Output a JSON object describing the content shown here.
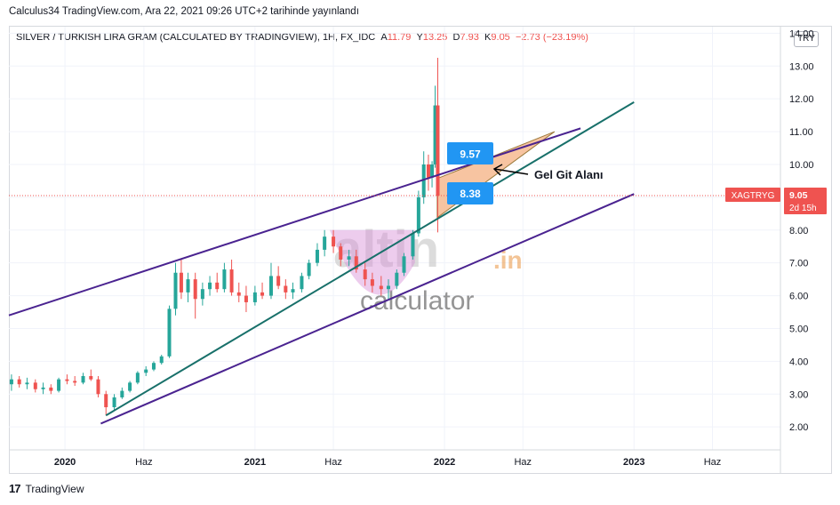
{
  "caption": "Calculus34 TradingView.com, Ara 22, 2021 09:26 UTC+2 tarihinde yayınlandı",
  "legend": {
    "symbol": "SILVER / TURKISH LIRA GRAM (CALCULATED BY TRADINGVIEW), 1H, FX_IDC",
    "open_label": "A",
    "open": "11.79",
    "high_label": "Y",
    "high": "13.25",
    "low_label": "D",
    "low": "7.93",
    "close_label": "K",
    "close": "9.05",
    "change": "−2.73 (−23.19%)"
  },
  "currency_button": "TRY",
  "footer": {
    "brand": "TradingView"
  },
  "watermark": {
    "main": "altin",
    "tld": ".in",
    "sub": "calculator"
  },
  "annotation": {
    "label": "Gel Git Alanı",
    "upper_value": "9.57",
    "lower_value": "8.38"
  },
  "price_tag": {
    "ticker": "XAGTRYG",
    "price": "9.05",
    "countdown": "2d 15h"
  },
  "colors": {
    "up": "#26a69a",
    "down": "#ef5350",
    "channel": "#4a2390",
    "trend": "#18706a",
    "zone": "#f5b58a",
    "badge": "#2196f3",
    "cup": "#d88fd6"
  },
  "chart_data": {
    "type": "candlestick",
    "y_ticks": [
      2,
      3,
      4,
      5,
      6,
      7,
      8,
      9,
      10,
      11,
      12,
      13,
      14
    ],
    "y_tick_labels": [
      "2.00",
      "3.00",
      "4.00",
      "5.00",
      "6.00",
      "7.00",
      "8.00",
      "9.00",
      "10.00",
      "11.00",
      "12.00",
      "13.00",
      "14.00"
    ],
    "ylim": [
      1.3,
      14.2
    ],
    "x_ticks": [
      "2020",
      "Haz",
      "2021",
      "Haz",
      "2022",
      "Haz",
      "2023",
      "Haz"
    ],
    "x_tick_dates": [
      "2020-01",
      "2020-06",
      "2021-01",
      "2021-06",
      "2022-01",
      "2022-06",
      "2023-01",
      "2023-06"
    ],
    "xlim": [
      "2019-09-15",
      "2023-10-10"
    ],
    "series": [
      {
        "values": [
          {
            "x": "2019-09-20",
            "o": 3.3,
            "h": 3.6,
            "l": 3.1,
            "c": 3.45
          },
          {
            "x": "2019-10-05",
            "o": 3.45,
            "h": 3.55,
            "l": 3.2,
            "c": 3.3
          },
          {
            "x": "2019-10-20",
            "o": 3.3,
            "h": 3.5,
            "l": 3.15,
            "c": 3.35
          },
          {
            "x": "2019-11-05",
            "o": 3.35,
            "h": 3.45,
            "l": 3.05,
            "c": 3.15
          },
          {
            "x": "2019-11-20",
            "o": 3.15,
            "h": 3.35,
            "l": 3.0,
            "c": 3.2
          },
          {
            "x": "2019-12-05",
            "o": 3.2,
            "h": 3.3,
            "l": 3.0,
            "c": 3.1
          },
          {
            "x": "2019-12-20",
            "o": 3.1,
            "h": 3.5,
            "l": 3.05,
            "c": 3.45
          },
          {
            "x": "2020-01-05",
            "o": 3.45,
            "h": 3.6,
            "l": 3.3,
            "c": 3.4
          },
          {
            "x": "2020-01-20",
            "o": 3.4,
            "h": 3.55,
            "l": 3.25,
            "c": 3.35
          },
          {
            "x": "2020-02-05",
            "o": 3.35,
            "h": 3.65,
            "l": 3.3,
            "c": 3.55
          },
          {
            "x": "2020-02-20",
            "o": 3.55,
            "h": 3.75,
            "l": 3.4,
            "c": 3.45
          },
          {
            "x": "2020-03-05",
            "o": 3.45,
            "h": 3.55,
            "l": 2.9,
            "c": 3.0
          },
          {
            "x": "2020-03-20",
            "o": 3.0,
            "h": 3.1,
            "l": 2.35,
            "c": 2.6
          },
          {
            "x": "2020-04-05",
            "o": 2.6,
            "h": 3.0,
            "l": 2.5,
            "c": 2.9
          },
          {
            "x": "2020-04-20",
            "o": 2.9,
            "h": 3.2,
            "l": 2.85,
            "c": 3.1
          },
          {
            "x": "2020-05-05",
            "o": 3.1,
            "h": 3.4,
            "l": 3.05,
            "c": 3.35
          },
          {
            "x": "2020-05-20",
            "o": 3.35,
            "h": 3.7,
            "l": 3.3,
            "c": 3.65
          },
          {
            "x": "2020-06-05",
            "o": 3.65,
            "h": 3.85,
            "l": 3.55,
            "c": 3.75
          },
          {
            "x": "2020-06-20",
            "o": 3.75,
            "h": 4.0,
            "l": 3.7,
            "c": 3.95
          },
          {
            "x": "2020-07-05",
            "o": 3.95,
            "h": 4.2,
            "l": 3.9,
            "c": 4.15
          },
          {
            "x": "2020-07-20",
            "o": 4.15,
            "h": 5.7,
            "l": 4.1,
            "c": 5.6
          },
          {
            "x": "2020-08-01",
            "o": 5.6,
            "h": 7.0,
            "l": 5.4,
            "c": 6.7
          },
          {
            "x": "2020-08-12",
            "o": 6.7,
            "h": 7.1,
            "l": 5.9,
            "c": 6.1
          },
          {
            "x": "2020-08-25",
            "o": 6.1,
            "h": 6.7,
            "l": 5.8,
            "c": 6.5
          },
          {
            "x": "2020-09-08",
            "o": 6.5,
            "h": 6.7,
            "l": 5.3,
            "c": 5.9
          },
          {
            "x": "2020-09-22",
            "o": 5.9,
            "h": 6.4,
            "l": 5.7,
            "c": 6.2
          },
          {
            "x": "2020-10-06",
            "o": 6.2,
            "h": 6.6,
            "l": 6.0,
            "c": 6.4
          },
          {
            "x": "2020-10-20",
            "o": 6.4,
            "h": 6.7,
            "l": 6.1,
            "c": 6.2
          },
          {
            "x": "2020-11-03",
            "o": 6.2,
            "h": 7.0,
            "l": 6.1,
            "c": 6.8
          },
          {
            "x": "2020-11-17",
            "o": 6.8,
            "h": 7.1,
            "l": 6.0,
            "c": 6.1
          },
          {
            "x": "2020-12-01",
            "o": 6.1,
            "h": 6.4,
            "l": 5.8,
            "c": 6.0
          },
          {
            "x": "2020-12-15",
            "o": 6.0,
            "h": 6.3,
            "l": 5.5,
            "c": 5.8
          },
          {
            "x": "2021-01-01",
            "o": 5.8,
            "h": 6.3,
            "l": 5.7,
            "c": 6.1
          },
          {
            "x": "2021-01-15",
            "o": 6.1,
            "h": 6.4,
            "l": 5.9,
            "c": 6.0
          },
          {
            "x": "2021-02-01",
            "o": 6.0,
            "h": 7.0,
            "l": 5.9,
            "c": 6.6
          },
          {
            "x": "2021-02-15",
            "o": 6.6,
            "h": 6.9,
            "l": 6.2,
            "c": 6.3
          },
          {
            "x": "2021-03-01",
            "o": 6.3,
            "h": 6.5,
            "l": 5.9,
            "c": 6.1
          },
          {
            "x": "2021-03-15",
            "o": 6.1,
            "h": 6.4,
            "l": 5.9,
            "c": 6.2
          },
          {
            "x": "2021-04-01",
            "o": 6.2,
            "h": 6.7,
            "l": 6.1,
            "c": 6.6
          },
          {
            "x": "2021-04-15",
            "o": 6.6,
            "h": 7.1,
            "l": 6.5,
            "c": 7.0
          },
          {
            "x": "2021-05-01",
            "o": 7.0,
            "h": 7.6,
            "l": 6.9,
            "c": 7.4
          },
          {
            "x": "2021-05-15",
            "o": 7.4,
            "h": 8.0,
            "l": 7.2,
            "c": 7.8
          },
          {
            "x": "2021-06-01",
            "o": 7.8,
            "h": 8.0,
            "l": 7.3,
            "c": 7.5
          },
          {
            "x": "2021-06-15",
            "o": 7.5,
            "h": 7.6,
            "l": 6.9,
            "c": 7.1
          },
          {
            "x": "2021-07-01",
            "o": 7.1,
            "h": 7.4,
            "l": 6.9,
            "c": 7.2
          },
          {
            "x": "2021-07-15",
            "o": 7.2,
            "h": 7.4,
            "l": 6.7,
            "c": 6.8
          },
          {
            "x": "2021-08-01",
            "o": 6.8,
            "h": 7.0,
            "l": 6.3,
            "c": 6.5
          },
          {
            "x": "2021-08-15",
            "o": 6.5,
            "h": 6.7,
            "l": 6.1,
            "c": 6.3
          },
          {
            "x": "2021-09-01",
            "o": 6.3,
            "h": 6.6,
            "l": 6.0,
            "c": 6.2
          },
          {
            "x": "2021-09-15",
            "o": 6.2,
            "h": 6.5,
            "l": 5.9,
            "c": 6.3
          },
          {
            "x": "2021-10-01",
            "o": 6.3,
            "h": 6.8,
            "l": 6.2,
            "c": 6.7
          },
          {
            "x": "2021-10-15",
            "o": 6.7,
            "h": 7.3,
            "l": 6.6,
            "c": 7.2
          },
          {
            "x": "2021-11-01",
            "o": 7.2,
            "h": 8.0,
            "l": 7.1,
            "c": 7.9
          },
          {
            "x": "2021-11-12",
            "o": 7.9,
            "h": 9.2,
            "l": 7.8,
            "c": 9.0
          },
          {
            "x": "2021-11-22",
            "o": 9.0,
            "h": 10.4,
            "l": 8.8,
            "c": 10.0
          },
          {
            "x": "2021-12-01",
            "o": 10.0,
            "h": 10.3,
            "l": 9.2,
            "c": 9.6
          },
          {
            "x": "2021-12-08",
            "o": 9.6,
            "h": 10.1,
            "l": 9.3,
            "c": 10.0
          },
          {
            "x": "2021-12-14",
            "o": 10.0,
            "h": 12.4,
            "l": 9.9,
            "c": 11.8
          },
          {
            "x": "2021-12-19",
            "o": 11.8,
            "h": 13.25,
            "l": 7.93,
            "c": 9.05
          }
        ]
      }
    ],
    "drawings": {
      "upper_channel": [
        [
          "2019-09-15",
          5.4
        ],
        [
          "2022-09-20",
          11.1
        ]
      ],
      "lower_channel": [
        [
          "2020-03-10",
          2.1
        ],
        [
          "2023-01-01",
          9.1
        ]
      ],
      "trend_line": [
        [
          "2020-03-20",
          2.35
        ],
        [
          "2023-01-01",
          11.9
        ]
      ],
      "zone": [
        [
          "2021-12-18",
          9.57
        ],
        [
          "2022-08-01",
          11.0
        ],
        [
          "2021-12-18",
          8.38
        ]
      ],
      "current_price": 9.05
    }
  }
}
